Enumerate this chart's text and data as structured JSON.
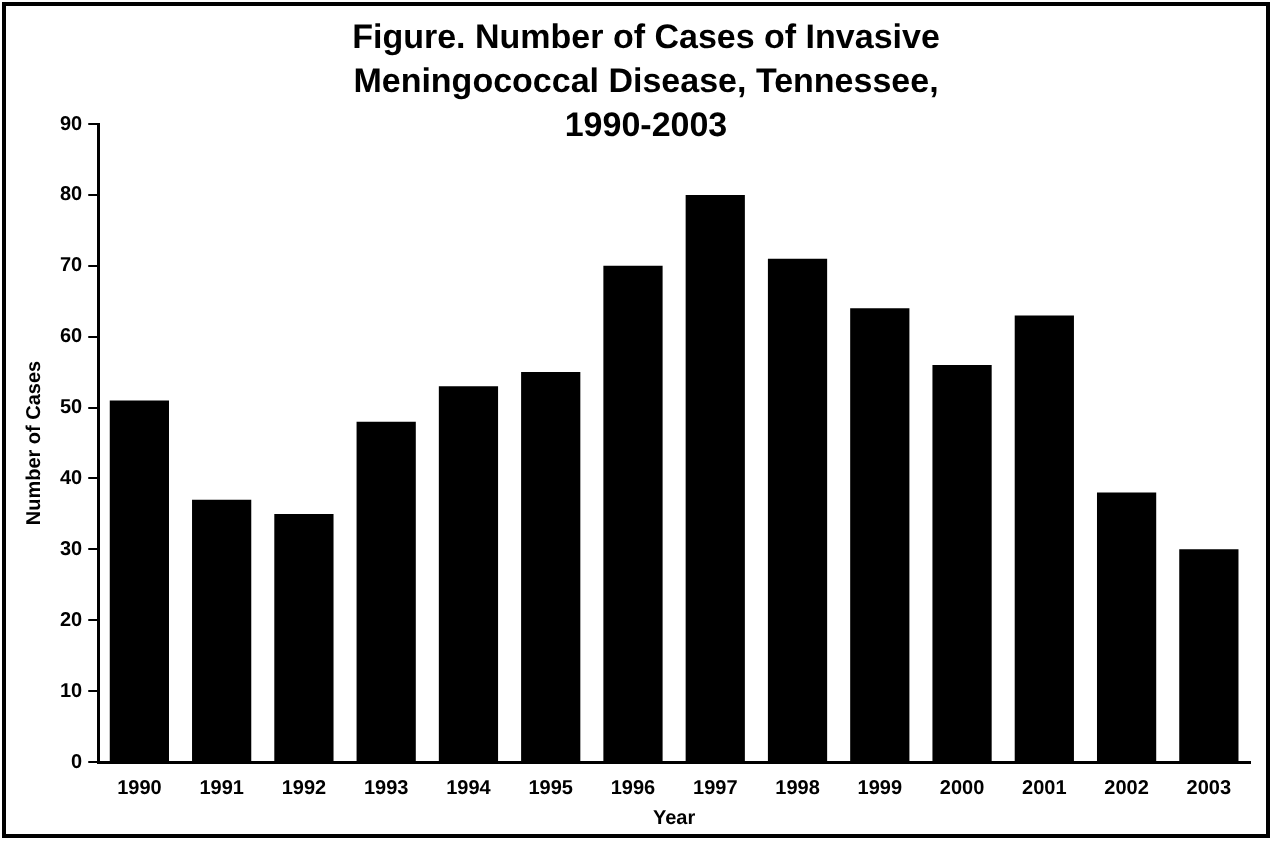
{
  "chart_data": {
    "type": "bar",
    "title": "Figure. Number of Cases of Invasive Meningococcal Disease, Tennessee, 1990-2003",
    "xlabel": "Year",
    "ylabel": "Number of Cases",
    "categories": [
      "1990",
      "1991",
      "1992",
      "1993",
      "1994",
      "1995",
      "1996",
      "1997",
      "1998",
      "1999",
      "2000",
      "2001",
      "2002",
      "2003"
    ],
    "values": [
      51,
      37,
      35,
      48,
      53,
      55,
      70,
      80,
      71,
      64,
      56,
      63,
      38,
      30
    ],
    "color": "#000000",
    "ylim": [
      0,
      90
    ],
    "yticks": [
      0,
      10,
      20,
      30,
      40,
      50,
      60,
      70,
      80,
      90
    ],
    "grid": false,
    "legend": false
  }
}
